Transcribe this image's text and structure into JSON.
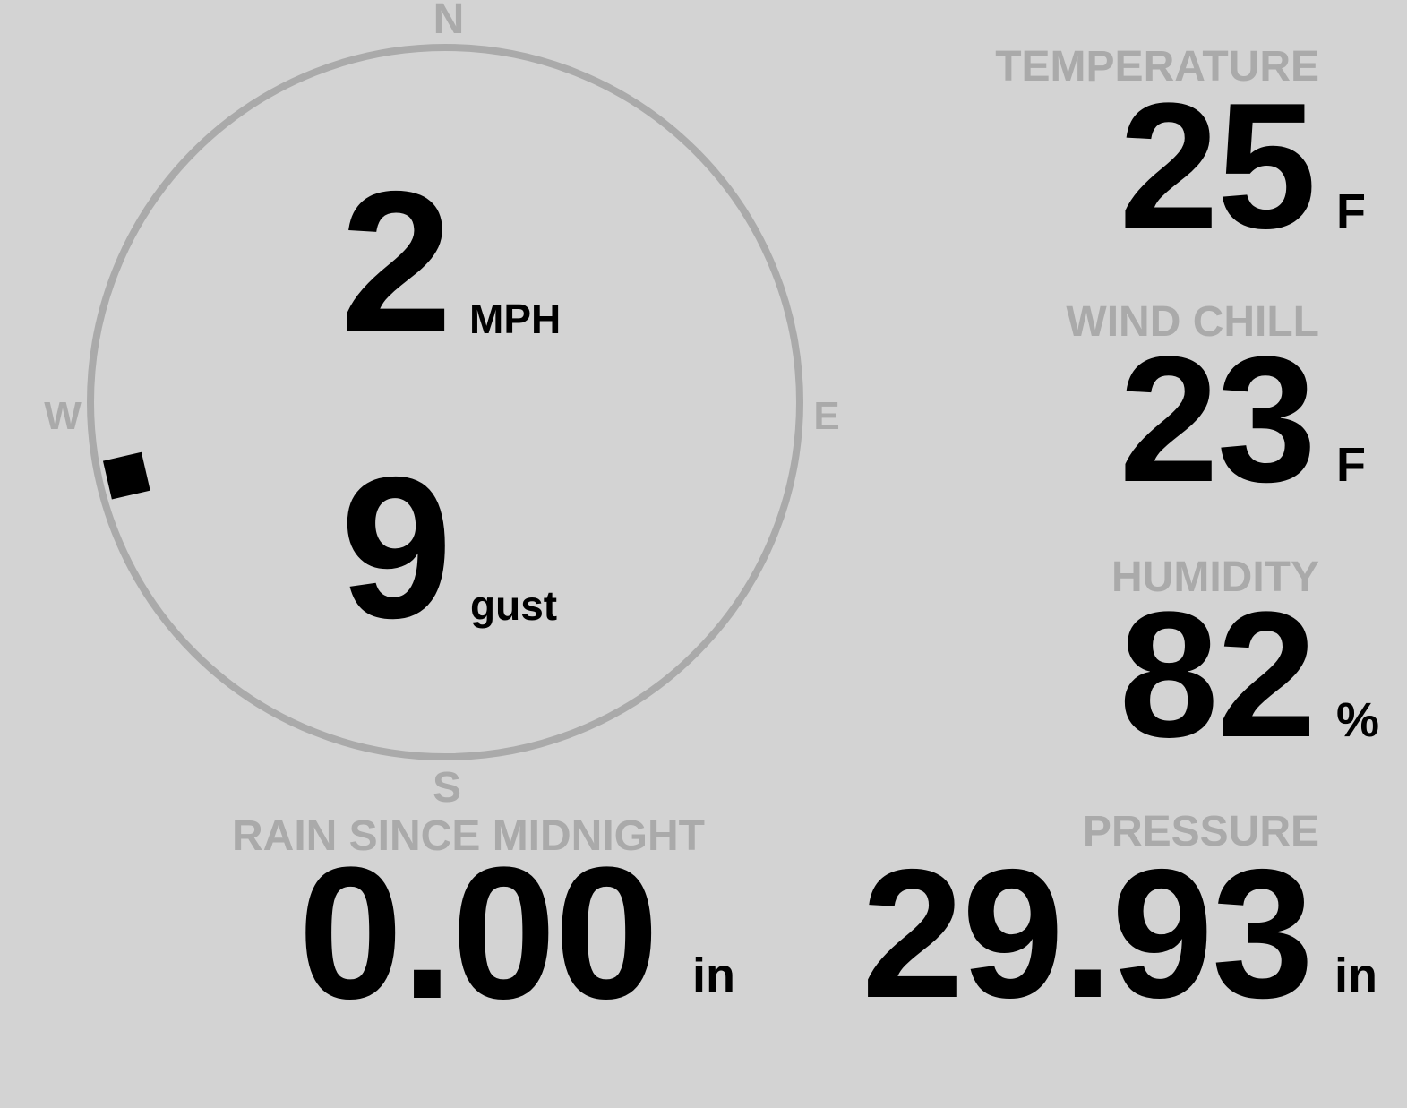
{
  "colors": {
    "background": "#d3d3d3",
    "label": "#aaaaaa",
    "value": "#000000",
    "dial": "#aaaaaa"
  },
  "compass": {
    "north": "N",
    "south": "S",
    "east": "E",
    "west": "W"
  },
  "wind": {
    "speed": "2",
    "speed_unit": "MPH",
    "gust": "9",
    "gust_unit": "gust",
    "direction_deg": 257
  },
  "temperature": {
    "label": "TEMPERATURE",
    "value": "25",
    "unit": "F"
  },
  "wind_chill": {
    "label": "WIND CHILL",
    "value": "23",
    "unit": "F"
  },
  "humidity": {
    "label": "HUMIDITY",
    "value": "82",
    "unit": "%"
  },
  "rain": {
    "label": "RAIN SINCE MIDNIGHT",
    "value": "0.00",
    "unit": "in"
  },
  "pressure": {
    "label": "PRESSURE",
    "value": "29.93",
    "unit": "in"
  }
}
